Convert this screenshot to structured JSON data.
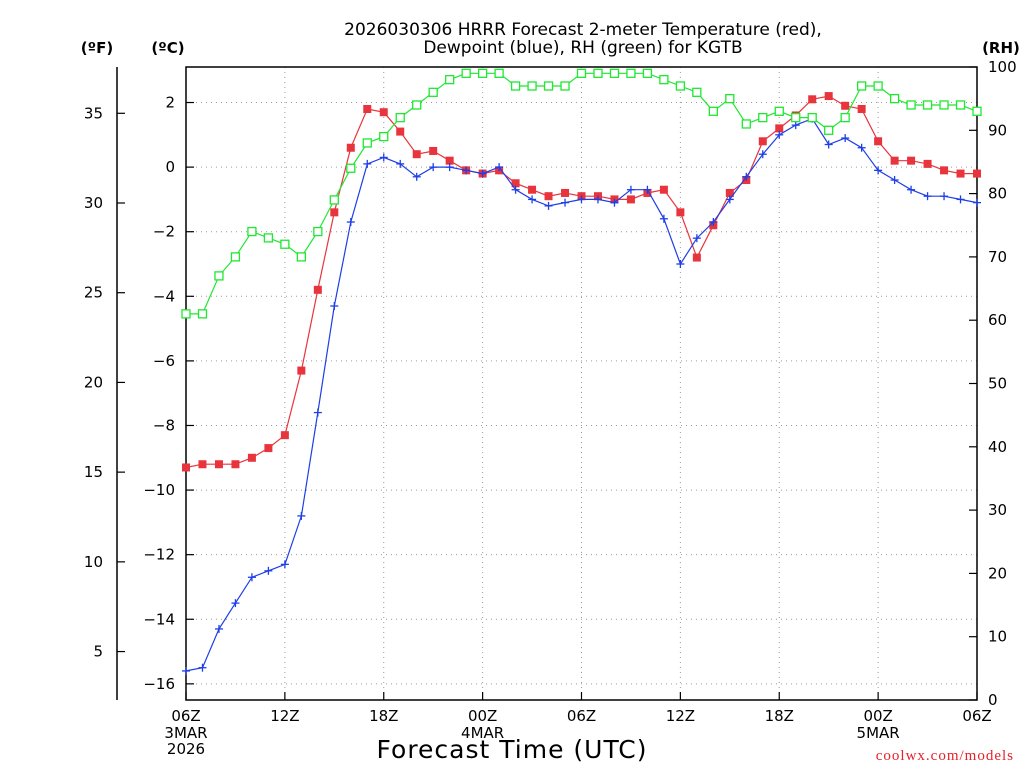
{
  "chart_data": {
    "type": "line",
    "title_lines": [
      "2026030306 HRRR Forecast 2-meter Temperature (red),",
      "Dewpoint (blue), RH (green) for KGTB"
    ],
    "xlabel": "Forecast Time (UTC)",
    "credit": "coolwx.com/models",
    "unit_labels": {
      "fahrenheit": "(ºF)",
      "celsius": "(ºC)",
      "rh": "(RH)"
    },
    "x_hours_range": [
      0,
      48
    ],
    "x_ticks": [
      {
        "hour": 0,
        "label": "06Z",
        "sub": [
          "3MAR",
          "2026"
        ]
      },
      {
        "hour": 6,
        "label": "12Z",
        "sub": []
      },
      {
        "hour": 12,
        "label": "18Z",
        "sub": []
      },
      {
        "hour": 18,
        "label": "00Z",
        "sub": [
          "4MAR"
        ]
      },
      {
        "hour": 24,
        "label": "06Z",
        "sub": []
      },
      {
        "hour": 30,
        "label": "12Z",
        "sub": []
      },
      {
        "hour": 36,
        "label": "18Z",
        "sub": []
      },
      {
        "hour": 42,
        "label": "00Z",
        "sub": [
          "5MAR"
        ]
      },
      {
        "hour": 48,
        "label": "06Z",
        "sub": []
      }
    ],
    "celsius_axis": {
      "range": [
        -16.5,
        3.1
      ],
      "ticks": [
        2,
        0,
        -2,
        -4,
        -6,
        -8,
        -10,
        -12,
        -14,
        -16
      ]
    },
    "fahrenheit_axis": {
      "range": [
        2.3,
        37.58
      ],
      "ticks": [
        35,
        30,
        25,
        20,
        15,
        10,
        5
      ]
    },
    "rh_axis": {
      "range": [
        0,
        100
      ],
      "ticks": [
        100,
        90,
        80,
        70,
        60,
        50,
        40,
        30,
        20,
        10,
        0
      ]
    },
    "series": [
      {
        "name": "Temperature",
        "units": "C",
        "axis": "celsius",
        "color": "#e8343c",
        "marker": "filled-square",
        "values": [
          -9.3,
          -9.2,
          -9.2,
          -9.2,
          -9.0,
          -8.7,
          -8.3,
          -6.3,
          -3.8,
          -1.4,
          0.6,
          1.8,
          1.7,
          1.1,
          0.4,
          0.5,
          0.2,
          -0.1,
          -0.2,
          -0.1,
          -0.5,
          -0.7,
          -0.9,
          -0.8,
          -0.9,
          -0.9,
          -1.0,
          -1.0,
          -0.8,
          -0.7,
          -1.4,
          -2.8,
          -1.8,
          -0.8,
          -0.4,
          0.8,
          1.2,
          1.6,
          2.1,
          2.2,
          1.9,
          1.8,
          0.8,
          0.2,
          0.2,
          0.1,
          -0.1,
          -0.2,
          -0.2
        ]
      },
      {
        "name": "Dewpoint",
        "units": "C",
        "axis": "celsius",
        "color": "#1e3ee8",
        "marker": "plus",
        "values": [
          -15.6,
          -15.5,
          -14.3,
          -13.5,
          -12.7,
          -12.5,
          -12.3,
          -10.8,
          -7.6,
          -4.3,
          -1.7,
          0.1,
          0.3,
          0.1,
          -0.3,
          0.0,
          0.0,
          -0.1,
          -0.2,
          0.0,
          -0.7,
          -1.0,
          -1.2,
          -1.1,
          -1.0,
          -1.0,
          -1.1,
          -0.7,
          -0.7,
          -1.6,
          -3.0,
          -2.2,
          -1.7,
          -1.0,
          -0.3,
          0.4,
          1.0,
          1.3,
          1.5,
          0.7,
          0.9,
          0.6,
          -0.1,
          -0.4,
          -0.7,
          -0.9,
          -0.9,
          -1.0,
          -1.1
        ]
      },
      {
        "name": "Relative Humidity",
        "units": "%",
        "axis": "rh",
        "color": "#1ee832",
        "marker": "open-square",
        "values": [
          61,
          61,
          67,
          70,
          74,
          73,
          72,
          70,
          74,
          79,
          84,
          88,
          89,
          92,
          94,
          96,
          98,
          99,
          99,
          99,
          97,
          97,
          97,
          97,
          99,
          99,
          99,
          99,
          99,
          98,
          97,
          96,
          93,
          95,
          91,
          92,
          93,
          92,
          92,
          90,
          92,
          97,
          97,
          95,
          94,
          94,
          94,
          94,
          93
        ]
      }
    ]
  }
}
